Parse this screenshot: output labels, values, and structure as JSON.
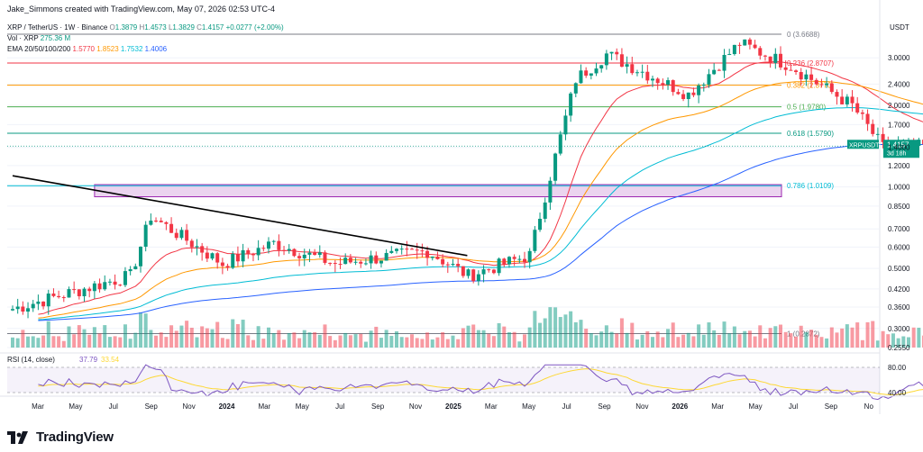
{
  "header": {
    "credit": "Jake_Simmons created with TradingView.com, May 07, 2026 02:53 UTC-4",
    "symbol": "XRP / TetherUS · 1W · Binance",
    "ohlc": {
      "o_label": "O",
      "o": "1.3879",
      "h_label": "H",
      "h": "1.4573",
      "l_label": "L",
      "l": "1.3829",
      "c_label": "C",
      "c": "1.4157",
      "change": "+0.0277 (+2.00%)"
    },
    "vol_label": "Vol · XRP",
    "vol_value": "275.36 M",
    "ema_label": "EMA 20/50/100/200",
    "ema_values": [
      {
        "value": "1.5770",
        "color": "#f23645"
      },
      {
        "value": "1.8523",
        "color": "#ff9800"
      },
      {
        "value": "1.7532",
        "color": "#00bcd4"
      },
      {
        "value": "1.4006",
        "color": "#2962ff"
      }
    ]
  },
  "price_axis": {
    "title": "USDT",
    "ticks": [
      "3.0000",
      "2.4000",
      "2.0000",
      "1.7000",
      "1.4000",
      "1.2000",
      "1.0000",
      "0.8500",
      "0.7000",
      "0.6000",
      "0.5000",
      "0.4200",
      "0.3600",
      "0.3000",
      "0.2550"
    ],
    "current_badge": {
      "symbol": "XRPUSDT",
      "price": "1.4157",
      "countdown": "3d 18h"
    }
  },
  "fib_levels": [
    {
      "label": "0 (3.6688)",
      "value": 3.6688,
      "color": "#787b86"
    },
    {
      "label": "0.236 (2.8707)",
      "value": 2.8707,
      "color": "#f23645"
    },
    {
      "label": "0.382 (2.3770)",
      "value": 2.377,
      "color": "#ff9800"
    },
    {
      "label": "0.5 (1.9780)",
      "value": 1.978,
      "color": "#4caf50"
    },
    {
      "label": "0.618 (1.5790)",
      "value": 1.579,
      "color": "#089981"
    },
    {
      "label": "0.786 (1.0109)",
      "value": 1.0109,
      "color": "#00bcd4"
    },
    {
      "label": "1 (0.2872)",
      "value": 0.2872,
      "color": "#787b86"
    }
  ],
  "rsi": {
    "label": "RSI (14, close)",
    "value": "37.79",
    "ma_value": "33.54",
    "ticks": [
      "80.00",
      "40.00"
    ]
  },
  "time_axis": [
    "Mar",
    "May",
    "Jul",
    "Sep",
    "Nov",
    "2024",
    "Mar",
    "May",
    "Jul",
    "Sep",
    "Nov",
    "2025",
    "Mar",
    "May",
    "Jul",
    "Sep",
    "Nov",
    "2026",
    "Mar",
    "May",
    "Jul",
    "Sep",
    "No"
  ],
  "colors": {
    "up": "#089981",
    "down": "#f23645",
    "support_box": "#9c27b0",
    "trendline": "#000000",
    "rsi_line": "#7e57c2",
    "rsi_ma": "#fdd835"
  },
  "logo_text": "TradingView",
  "chart_data": {
    "type": "candlestick",
    "scale": "log",
    "ylim": [
      0.255,
      3.9
    ],
    "x_ticks": [
      "Mar",
      "May",
      "Jul",
      "Sep",
      "Nov",
      "2024",
      "Mar",
      "May",
      "Jul",
      "Sep",
      "Nov",
      "2025",
      "Mar",
      "May",
      "Jul",
      "Sep",
      "Nov",
      "2026",
      "Mar",
      "May",
      "Jul",
      "Sep",
      "No"
    ],
    "series": [
      {
        "name": "XRP / TetherUS",
        "type": "candlestick",
        "ohlc_last": {
          "open": 1.3879,
          "high": 1.4573,
          "low": 1.3829,
          "close": 1.4157
        }
      },
      {
        "name": "EMA 20",
        "value_last": 1.577
      },
      {
        "name": "EMA 50",
        "value_last": 1.8523
      },
      {
        "name": "EMA 100",
        "value_last": 1.7532
      },
      {
        "name": "EMA 200",
        "value_last": 1.4006
      },
      {
        "name": "Vol · XRP",
        "value_last": "275.36 M"
      },
      {
        "name": "RSI (14, close)",
        "value_last": 37.79,
        "ma_last": 33.54
      }
    ],
    "segments": [
      {
        "weeks": 24,
        "from": 0.35,
        "to": 0.47
      },
      {
        "weeks": 4,
        "from": 0.47,
        "to": 0.78
      },
      {
        "weeks": 14,
        "from": 0.78,
        "to": 0.52
      },
      {
        "weeks": 10,
        "from": 0.52,
        "to": 0.62
      },
      {
        "weeks": 12,
        "from": 0.62,
        "to": 0.52
      },
      {
        "weeks": 18,
        "from": 0.52,
        "to": 0.58
      },
      {
        "weeks": 8,
        "from": 0.58,
        "to": 0.47
      },
      {
        "weeks": 12,
        "from": 0.47,
        "to": 0.56
      },
      {
        "weeks": 4,
        "from": 0.56,
        "to": 1.1
      },
      {
        "weeks": 5,
        "from": 1.1,
        "to": 2.5
      },
      {
        "weeks": 6,
        "from": 2.5,
        "to": 3.1
      },
      {
        "weeks": 16,
        "from": 3.1,
        "to": 2.2
      },
      {
        "weeks": 10,
        "from": 2.2,
        "to": 3.4
      },
      {
        "weeks": 10,
        "from": 3.4,
        "to": 2.8
      },
      {
        "weeks": 12,
        "from": 2.8,
        "to": 2.0
      },
      {
        "weeks": 6,
        "from": 2.0,
        "to": 1.4
      },
      {
        "weeks": 9,
        "from": 1.4,
        "to": 1.4157
      }
    ],
    "support_zone": {
      "from_week": 16,
      "to_week": 148,
      "top": 1.02,
      "bottom": 0.92
    },
    "trendline": {
      "start": {
        "week": 0,
        "price": 1.1
      },
      "end": {
        "week": 80,
        "price": 0.57
      }
    },
    "annotations": [
      "0 (3.6688)",
      "0.236 (2.8707)",
      "0.382 (2.3770)",
      "0.5 (1.9780)",
      "0.618 (1.5790)",
      "0.786 (1.0109)",
      "1 (0.2872)"
    ]
  }
}
